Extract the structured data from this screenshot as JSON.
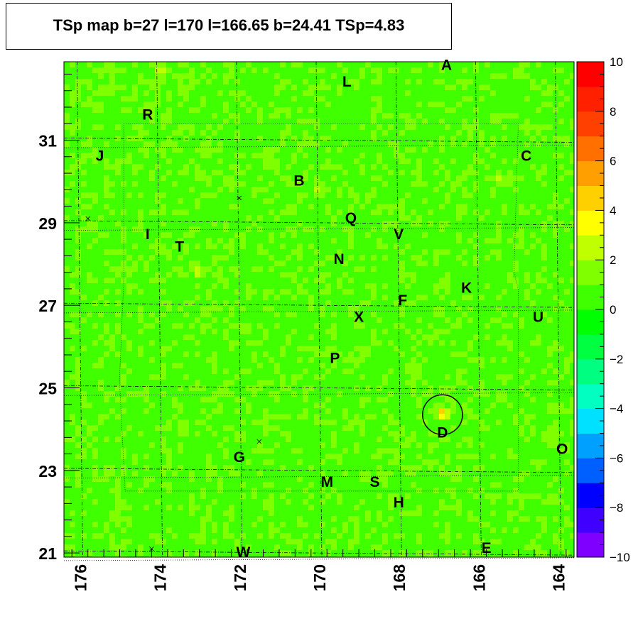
{
  "chart_data": {
    "type": "heatmap",
    "title": "TSp map b=27 l=170 l=166.65 b=24.41 TSp=4.83",
    "x_axis": {
      "range": [
        176.4,
        163.6
      ],
      "ticks": [
        176,
        174,
        172,
        170,
        168,
        166,
        164
      ],
      "tick_labels": [
        "176",
        "174",
        "172",
        "170",
        "168",
        "166",
        "164"
      ],
      "reversed": true
    },
    "y_axis": {
      "range": [
        20.9,
        32.9
      ],
      "ticks": [
        21,
        23,
        25,
        27,
        29,
        31
      ],
      "tick_labels": [
        "21",
        "23",
        "25",
        "27",
        "29",
        "31"
      ]
    },
    "z_axis": {
      "range": [
        -10,
        10
      ],
      "ticks": [
        10,
        8,
        6,
        4,
        2,
        0,
        -2,
        -4,
        -6,
        -8,
        -10
      ],
      "tick_labels": [
        "10",
        "8",
        "6",
        "4",
        "2",
        "0",
        "−2",
        "−4",
        "−6",
        "−8",
        "−10"
      ],
      "palette": [
        "#8000ff",
        "#4000ff",
        "#0000ff",
        "#0060ff",
        "#00a0ff",
        "#00e0ff",
        "#00ffc0",
        "#00ff80",
        "#00ff40",
        "#00ff00",
        "#40ff00",
        "#80ff00",
        "#c0ff00",
        "#ffff00",
        "#ffd000",
        "#ffa000",
        "#ff7000",
        "#ff4000",
        "#ff2000",
        "#ff0000"
      ]
    },
    "background_level": 0.5,
    "grid": true,
    "labels": [
      {
        "text": "A",
        "l": 166.8,
        "b": 32.7
      },
      {
        "text": "L",
        "l": 169.3,
        "b": 32.3
      },
      {
        "text": "R",
        "l": 174.3,
        "b": 31.5
      },
      {
        "text": "J",
        "l": 175.5,
        "b": 30.5
      },
      {
        "text": "C",
        "l": 164.8,
        "b": 30.5
      },
      {
        "text": "B",
        "l": 170.5,
        "b": 29.9
      },
      {
        "text": "Q",
        "l": 169.2,
        "b": 29.0
      },
      {
        "text": "V",
        "l": 168.0,
        "b": 28.6
      },
      {
        "text": "I",
        "l": 174.3,
        "b": 28.6
      },
      {
        "text": "T",
        "l": 173.5,
        "b": 28.3
      },
      {
        "text": "N",
        "l": 169.5,
        "b": 28.0
      },
      {
        "text": "K",
        "l": 166.3,
        "b": 27.3
      },
      {
        "text": "F",
        "l": 167.9,
        "b": 27.0
      },
      {
        "text": "U",
        "l": 164.5,
        "b": 26.6
      },
      {
        "text": "X",
        "l": 169.0,
        "b": 26.6
      },
      {
        "text": "P",
        "l": 169.6,
        "b": 25.6
      },
      {
        "text": "D",
        "l": 166.9,
        "b": 23.8
      },
      {
        "text": "O",
        "l": 163.9,
        "b": 23.4
      },
      {
        "text": "G",
        "l": 172.0,
        "b": 23.2
      },
      {
        "text": "M",
        "l": 169.8,
        "b": 22.6
      },
      {
        "text": "S",
        "l": 168.6,
        "b": 22.6
      },
      {
        "text": "H",
        "l": 168.0,
        "b": 22.1
      },
      {
        "text": "W",
        "l": 171.9,
        "b": 20.9
      },
      {
        "text": "E",
        "l": 165.8,
        "b": 21.0
      }
    ],
    "circle": {
      "l": 166.9,
      "b": 24.35,
      "radius_deg": 0.5
    },
    "hotspots": [
      {
        "l": 166.9,
        "b": 24.4,
        "value": 4.83
      },
      {
        "l": 173.0,
        "b": 27.8,
        "value": 3.0
      },
      {
        "l": 174.0,
        "b": 32.7,
        "value": 3.0
      },
      {
        "l": 170.0,
        "b": 29.8,
        "value": 2.5
      },
      {
        "l": 165.5,
        "b": 30.1,
        "value": 2.5
      }
    ],
    "cross_markers": [
      {
        "l": 172.0,
        "b": 29.6
      },
      {
        "l": 175.8,
        "b": 29.1
      },
      {
        "l": 171.5,
        "b": 23.7
      },
      {
        "l": 174.2,
        "b": 21.1
      }
    ]
  }
}
